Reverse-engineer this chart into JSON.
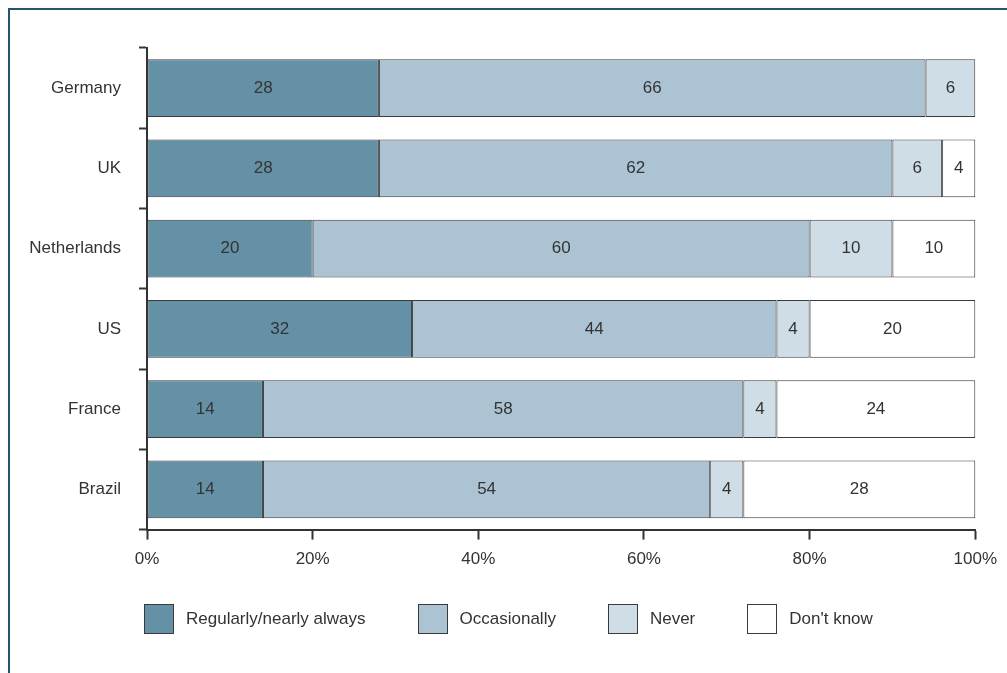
{
  "chart_data": {
    "type": "bar",
    "orientation": "horizontal",
    "stacked": true,
    "categories": [
      "Germany",
      "UK",
      "Netherlands",
      "US",
      "France",
      "Brazil"
    ],
    "series": [
      {
        "name": "Regularly/nearly always",
        "color": "#6591a7",
        "values": [
          28,
          28,
          20,
          32,
          14,
          14
        ],
        "value_labels": [
          "28",
          "28",
          "20",
          "32",
          "14",
          "14"
        ]
      },
      {
        "name": "Occasionally",
        "color": "#abc3d2",
        "values": [
          66,
          62,
          60,
          44,
          58,
          54
        ],
        "value_labels": [
          "66",
          "62",
          "60",
          "44",
          "58",
          "54"
        ]
      },
      {
        "name": "Never",
        "color": "#cfdde6",
        "values": [
          6,
          6,
          10,
          4,
          4,
          4
        ],
        "value_labels": [
          "6",
          "6",
          "10",
          "4",
          "4",
          "4"
        ]
      },
      {
        "name": "Don't know",
        "color": "#ffffff",
        "values": [
          0,
          4,
          10,
          20,
          24,
          28
        ],
        "value_labels": [
          null,
          "4",
          "10",
          "20",
          "24",
          "28"
        ]
      }
    ],
    "xlim": [
      0,
      100
    ],
    "xticks": [
      {
        "value": 0,
        "label": "0%"
      },
      {
        "value": 20,
        "label": "20%"
      },
      {
        "value": 40,
        "label": "40%"
      },
      {
        "value": 60,
        "label": "60%"
      },
      {
        "value": 80,
        "label": "80%"
      },
      {
        "value": 100,
        "label": "100%"
      }
    ],
    "legend": "bottom"
  }
}
